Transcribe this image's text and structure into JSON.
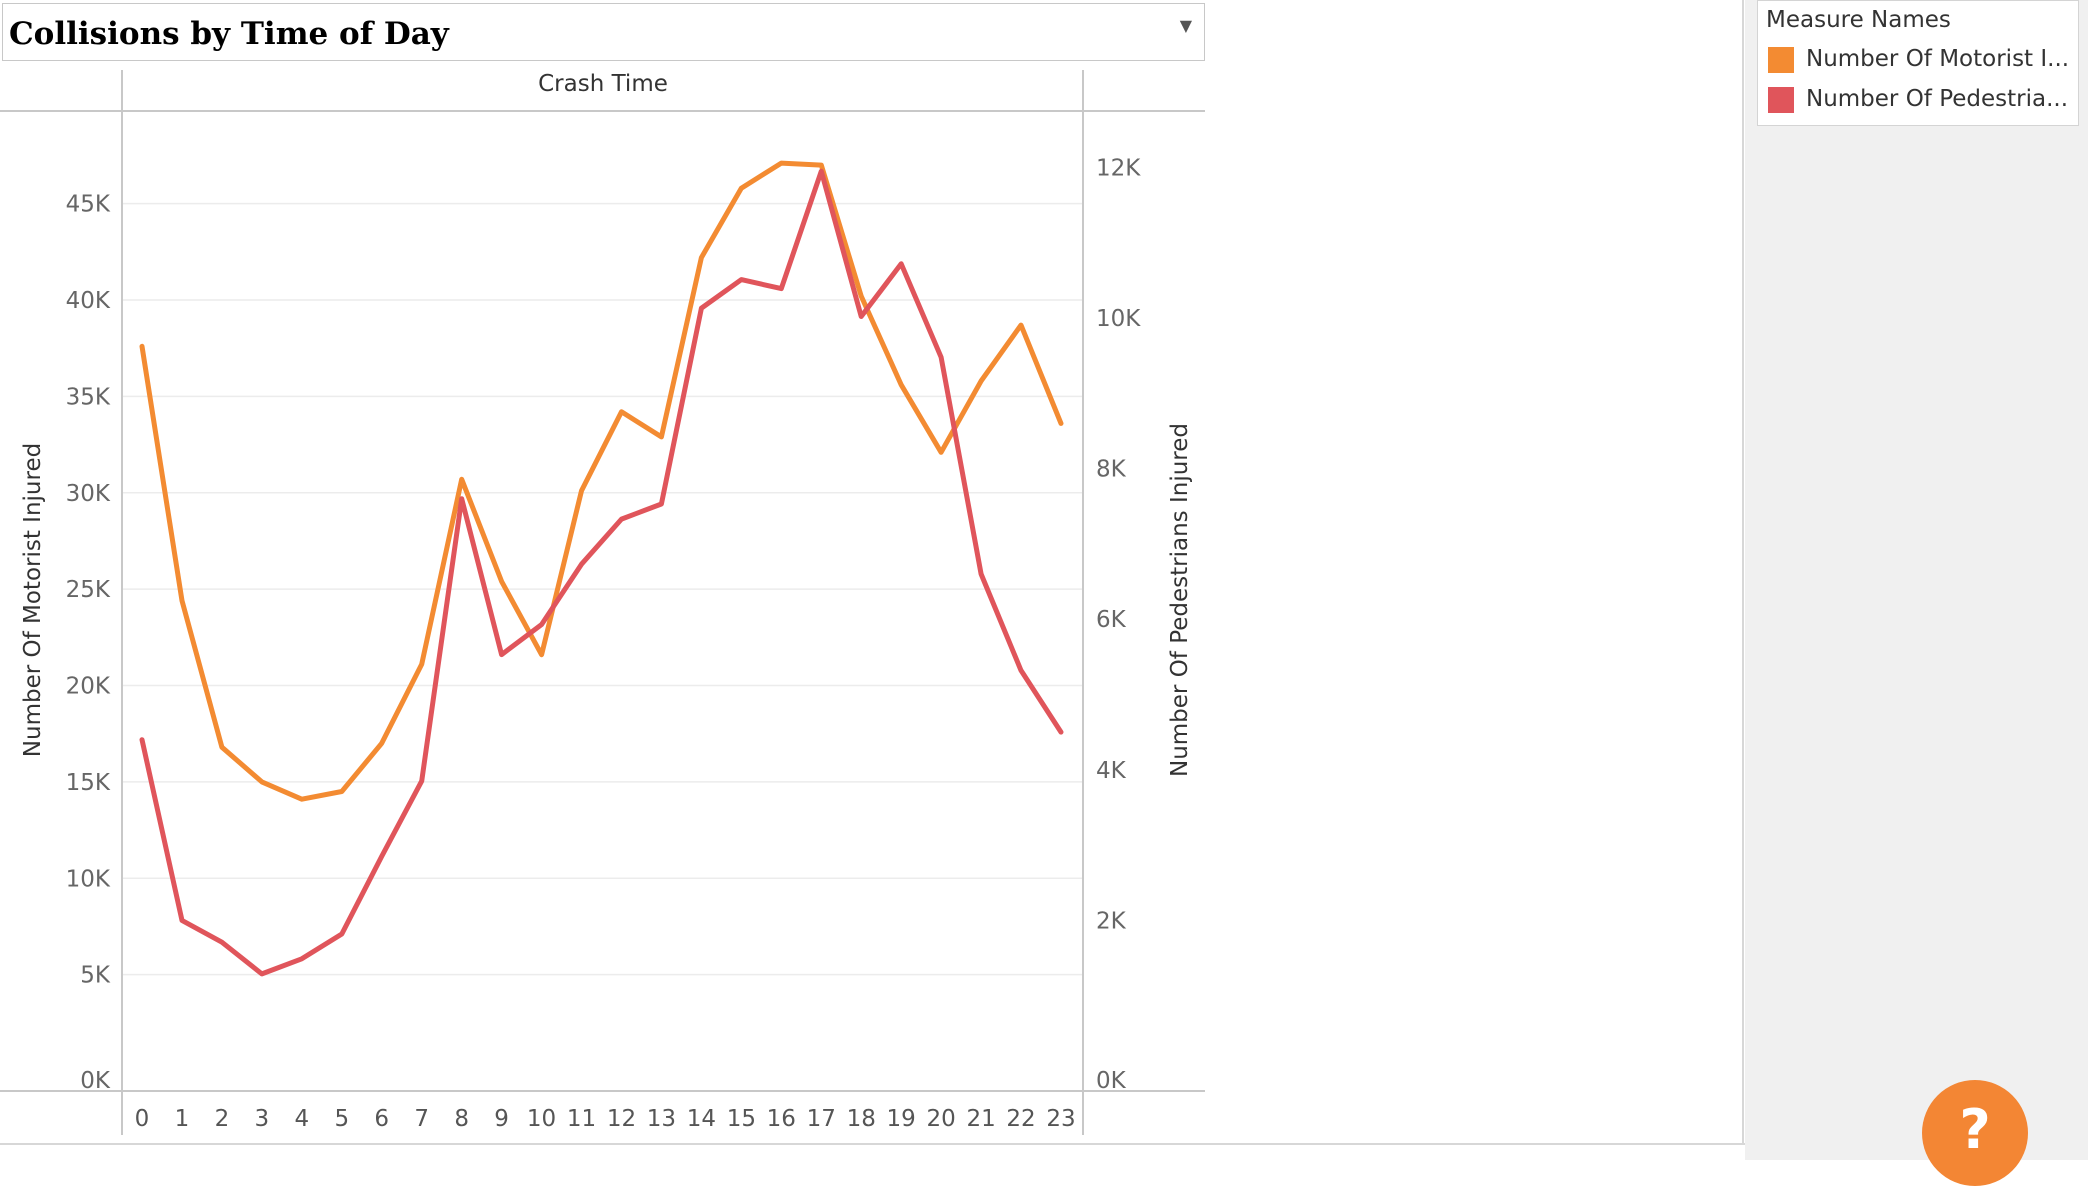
{
  "title": "Collisions by Time of Day",
  "legend": {
    "title": "Measure Names",
    "items": [
      {
        "label": "Number Of Motorist I...",
        "color": "#f38b32"
      },
      {
        "label": "Number Of Pedestria...",
        "color": "#e0555b"
      }
    ]
  },
  "help_label": "?",
  "chart_data": {
    "type": "line",
    "title": "Collisions by Time of Day",
    "header": "Crash Time",
    "xlabel": "",
    "categories": [
      "0",
      "1",
      "2",
      "3",
      "4",
      "5",
      "6",
      "7",
      "8",
      "9",
      "10",
      "11",
      "12",
      "13",
      "14",
      "15",
      "16",
      "17",
      "18",
      "19",
      "20",
      "21",
      "22",
      "23"
    ],
    "y_left": {
      "label": "Number Of Motorist Injured",
      "ylim": [
        0,
        49000
      ],
      "ticks": [
        0,
        5000,
        10000,
        15000,
        20000,
        25000,
        30000,
        35000,
        40000,
        45000
      ],
      "tick_labels": [
        "0K",
        "5K",
        "10K",
        "15K",
        "20K",
        "25K",
        "30K",
        "35K",
        "40K",
        "45K"
      ]
    },
    "y_right": {
      "label": "Number Of Pedestrians Injured",
      "ylim": [
        0,
        12400
      ],
      "ticks": [
        0,
        2000,
        4000,
        6000,
        8000,
        10000,
        12000
      ],
      "tick_labels": [
        "0K",
        "2K",
        "4K",
        "6K",
        "8K",
        "10K",
        "12K"
      ]
    },
    "series": [
      {
        "name": "Number Of Motorist Injured",
        "axis": "left",
        "color": "#f38b32",
        "values": [
          37600,
          24400,
          16800,
          15000,
          14100,
          14500,
          17000,
          21100,
          30700,
          25400,
          21600,
          30100,
          34200,
          32900,
          42200,
          45800,
          47100,
          47000,
          40200,
          35600,
          32100,
          35800,
          38700,
          33600
        ]
      },
      {
        "name": "Number Of Pedestrians Injured",
        "axis": "right",
        "color": "#e0555b",
        "values": [
          4400,
          2000,
          1710,
          1290,
          1490,
          1820,
          2850,
          3850,
          7600,
          5530,
          5930,
          6730,
          7330,
          7530,
          10130,
          10510,
          10390,
          11950,
          10020,
          10720,
          9480,
          6600,
          5320,
          4500
        ]
      }
    ],
    "grid": true,
    "legend_position": "top-right"
  }
}
